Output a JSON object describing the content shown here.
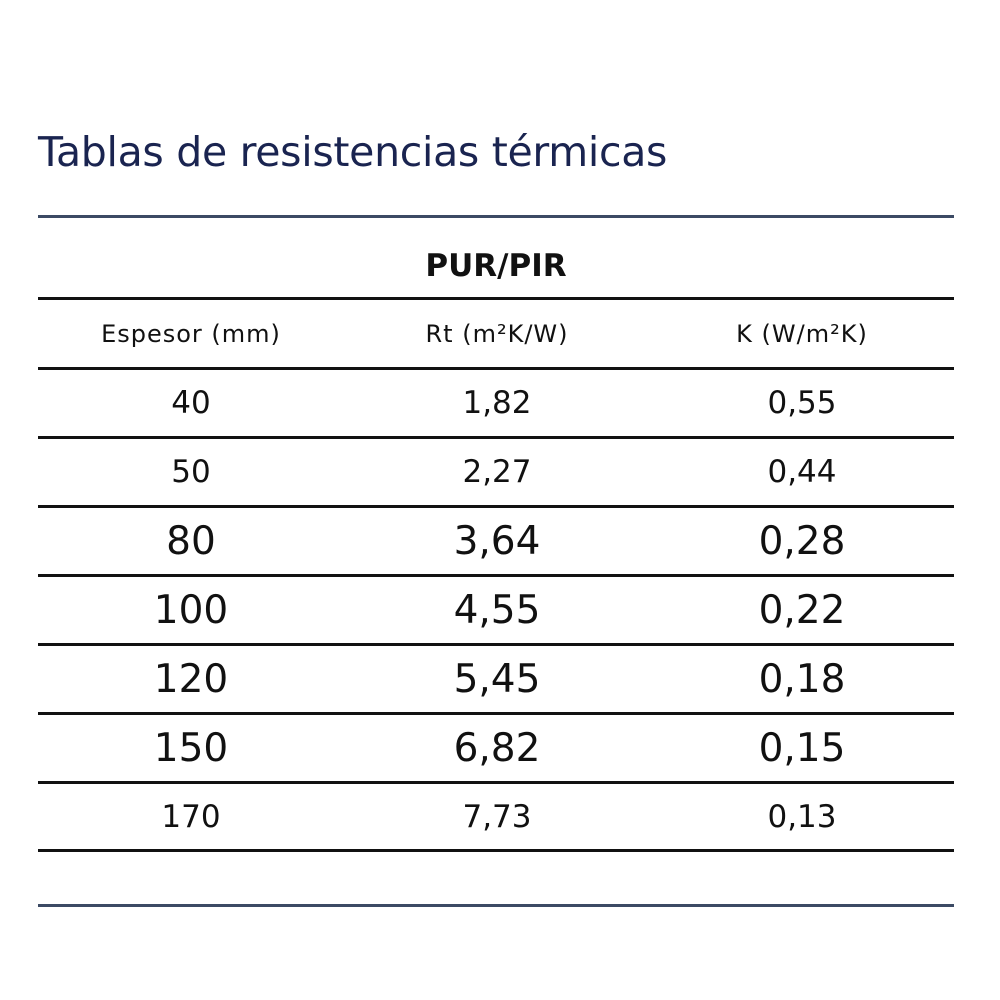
{
  "title": "Tablas de resistencias térmicas",
  "table": {
    "group_header": "PUR/PIR",
    "columns": [
      "Espesor (mm)",
      "Rt (m²K/W)",
      "K (W/m²K)"
    ],
    "rows": [
      [
        "40",
        "1,82",
        "0,55"
      ],
      [
        "50",
        "2,27",
        "0,44"
      ],
      [
        "80",
        "3,64",
        "0,28"
      ],
      [
        "100",
        "4,55",
        "0,22"
      ],
      [
        "120",
        "5,45",
        "0,18"
      ],
      [
        "150",
        "6,82",
        "0,15"
      ],
      [
        "170",
        "7,73",
        "0,13"
      ]
    ]
  },
  "colors": {
    "title": "#1a2450",
    "accent_rule": "#3c4a64",
    "row_rule": "#111111"
  }
}
